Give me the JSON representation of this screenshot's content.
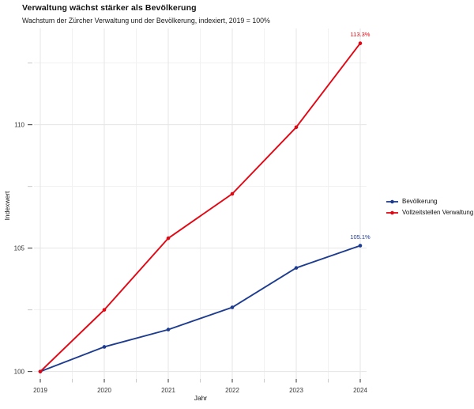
{
  "header": {
    "title": "Verwaltung wächst stärker als Bevölkerung",
    "subtitle": "Wachstum der Zürcher Verwaltung und der Bevölkerung, indexiert, 2019 = 100%"
  },
  "chart_data": {
    "type": "line",
    "x": [
      2019,
      2020,
      2021,
      2022,
      2023,
      2024
    ],
    "xlabel": "Jahr",
    "ylabel": "Indexwert",
    "ylim": [
      99.7,
      113.9
    ],
    "yticks": [
      100,
      105,
      110
    ],
    "yticks_minor": [
      102.5,
      107.5,
      112.5
    ],
    "grid": true,
    "legend_position": "right",
    "series": [
      {
        "name": "Bevölkerung",
        "color": "#1d3c8f",
        "values": [
          100,
          101.0,
          101.7,
          102.6,
          104.2,
          105.1
        ],
        "end_label": "105.1%"
      },
      {
        "name": "Vollzeitstellen Verwaltung",
        "color": "#e30613",
        "values": [
          100,
          102.5,
          105.4,
          107.2,
          109.9,
          113.3
        ],
        "end_label": "113.3%"
      }
    ]
  },
  "colors": {
    "grid_major": "#e4e4e4",
    "grid_minor": "#f1f1f1",
    "tick_major": "#333333",
    "tick_minor": "#c9c9c9",
    "tick_text": "#333333"
  }
}
